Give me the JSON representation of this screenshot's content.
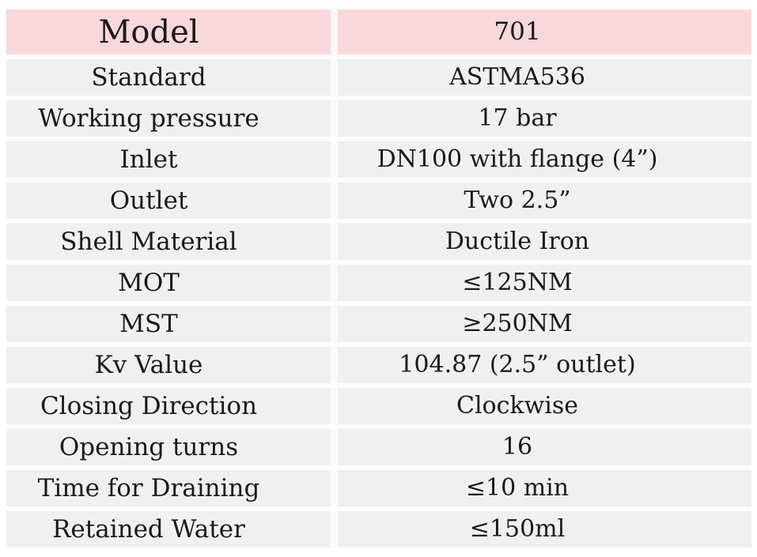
{
  "table": {
    "header": {
      "label": "Model",
      "value": "701"
    },
    "rows": [
      {
        "label": "Standard",
        "value": "ASTMA536"
      },
      {
        "label": "Working pressure",
        "value": "17 bar"
      },
      {
        "label": "Inlet",
        "value": "DN100 with flange (4”)"
      },
      {
        "label": "Outlet",
        "value": "Two 2.5”"
      },
      {
        "label": "Shell Material",
        "value": "Ductile Iron"
      },
      {
        "label": "MOT",
        "value": "≤125NM"
      },
      {
        "label": "MST",
        "value": "≥250NM"
      },
      {
        "label": "Kv Value",
        "value": "104.87 (2.5” outlet)"
      },
      {
        "label": "Closing Direction",
        "value": "Clockwise"
      },
      {
        "label": "Opening turns",
        "value": "16"
      },
      {
        "label": "Time for Draining",
        "value": "≤10 min"
      },
      {
        "label": "Retained Water",
        "value": "≤150ml"
      }
    ],
    "colors": {
      "header_bg": "#f8d8da",
      "row_bg": "#f0f0f0",
      "text": "#1a1a1a",
      "page_bg": "#ffffff"
    }
  }
}
